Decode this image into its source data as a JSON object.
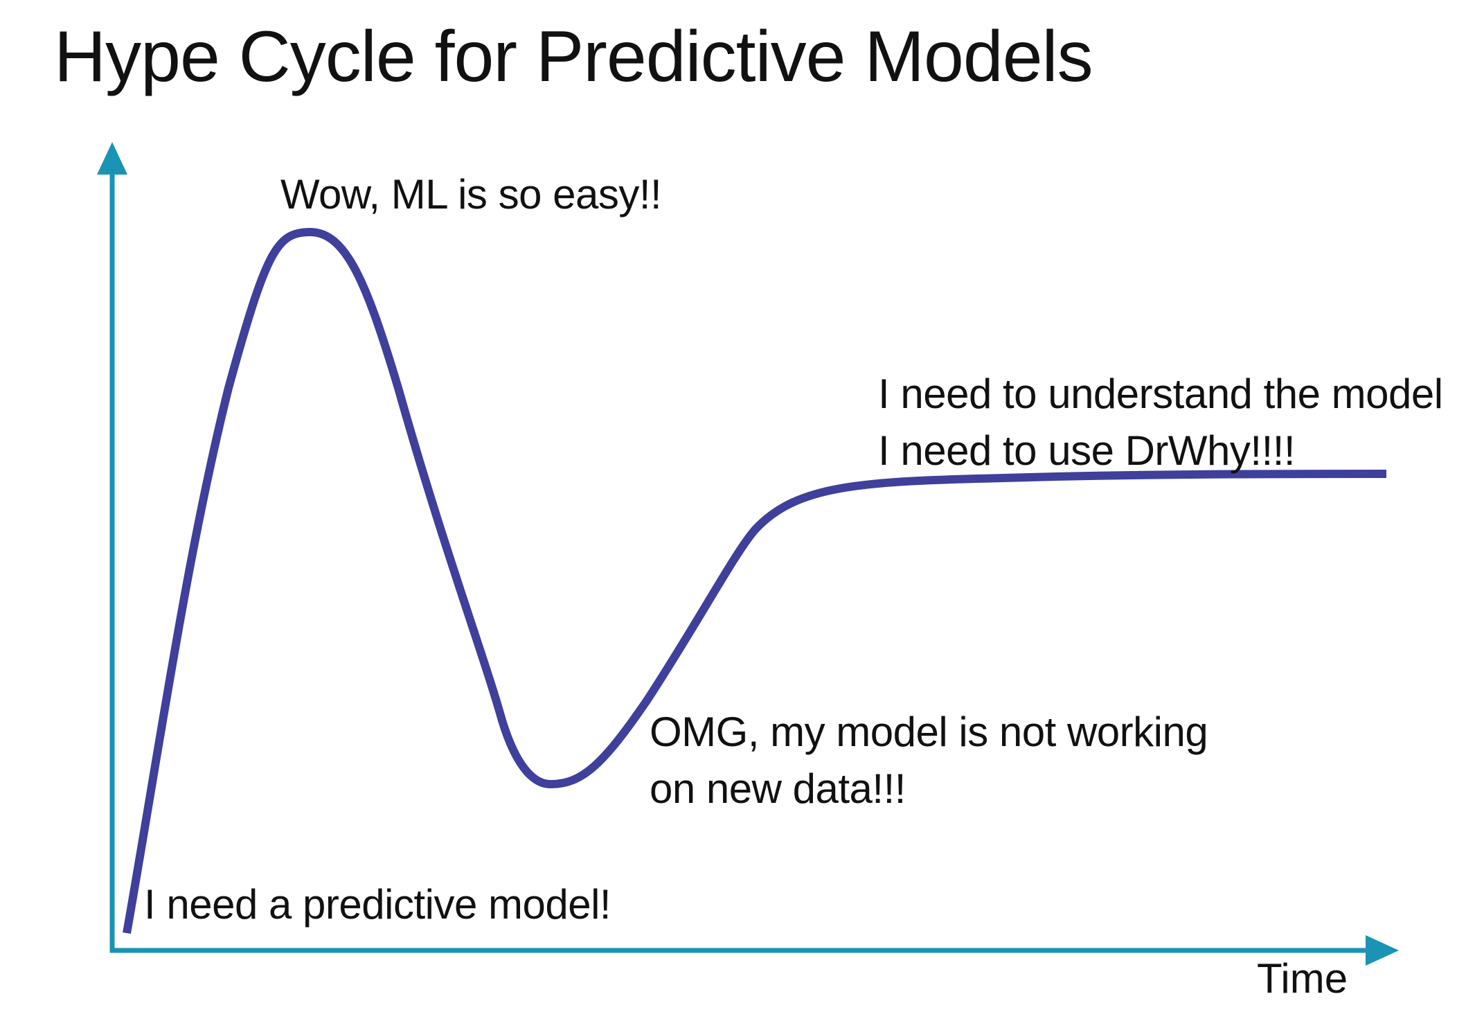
{
  "title": "Hype Cycle for Predictive Models",
  "x_axis_label": "Time",
  "annotations": {
    "peak": [
      "Wow, ML is so easy!!"
    ],
    "plateau": [
      "I need to understand the model",
      "I need to use DrWhy!!!!"
    ],
    "trough": [
      "OMG, my model is not working",
      "on new data!!!"
    ],
    "start": [
      "I need a predictive model!"
    ]
  },
  "colors": {
    "axis": "#1a93b4",
    "curve": "#3f3f9c",
    "text": "#111111"
  }
}
